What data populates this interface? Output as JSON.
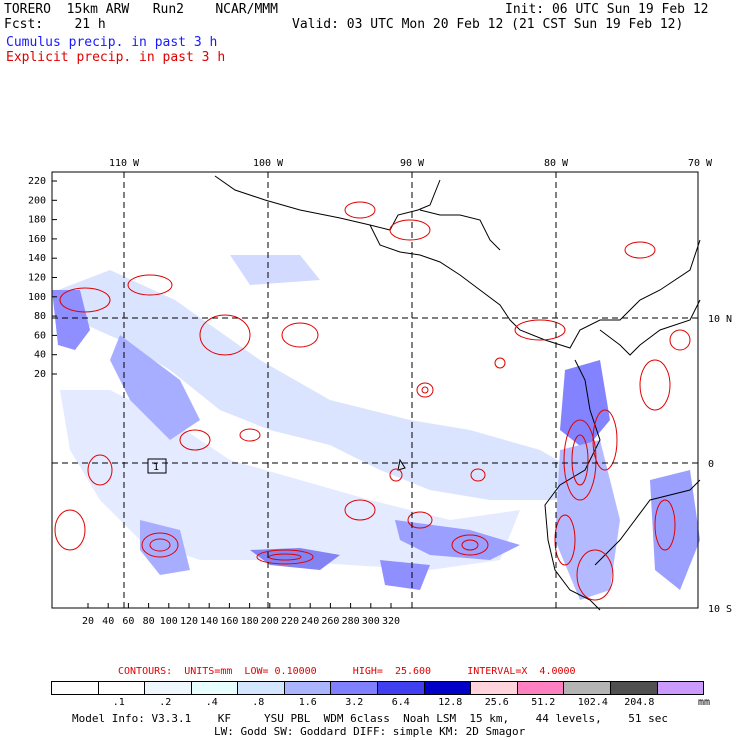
{
  "header": {
    "model": "TORERO  15km ARW   Run2    NCAR/MMM",
    "init": "Init: 06 UTC Sun 19 Feb 12",
    "fcst_label": "Fcst:    21 h",
    "valid": "Valid: 03 UTC Mon 20 Feb 12 (21 CST Sun 19 Feb 12)",
    "line_cumulus": "Cumulus precip. in past 3 h",
    "line_explicit": "Explicit precip. in past 3 h"
  },
  "map": {
    "top_lon_labels": [
      "110 W",
      "100 W",
      "90 W",
      "80 W",
      "70 W"
    ],
    "right_lat_labels": [
      "10 N",
      "0",
      "10 S"
    ],
    "y_ticks": [
      "220",
      "200",
      "180",
      "160",
      "140",
      "120",
      "100",
      "80",
      "60",
      "40",
      "20"
    ],
    "x_ticks": [
      "20",
      "40",
      "60",
      "80",
      "100",
      "120",
      "140",
      "160",
      "180",
      "200",
      "220",
      "240",
      "260",
      "280",
      "300",
      "320"
    ],
    "box_label": "1"
  },
  "contours_text": "CONTOURS:  UNITS=mm  LOW= 0.10000      HIGH=  25.600      INTERVAL=X  4.0000",
  "colorbar": {
    "labels": [
      ".1",
      ".2",
      ".4",
      ".8",
      "1.6",
      "3.2",
      "6.4",
      "12.8",
      "25.6",
      "51.2",
      "102.4",
      "204.8"
    ],
    "unit": "mm",
    "colors": [
      "#ffffff",
      "#ffffff",
      "#f0f8ff",
      "#e8ffff",
      "#d4e6ff",
      "#aab4ff",
      "#8080ff",
      "#4040f0",
      "#0000c8",
      "#ffd4dc",
      "#ff80c0",
      "#b4b4b4",
      "#505050",
      "#cc99ff"
    ]
  },
  "footer": {
    "line1": "Model Info: V3.3.1    KF     YSU PBL  WDM 6class  Noah LSM  15 km,    44 levels,    51 sec",
    "line2": "LW: Godd SW: Goddard DIFF: simple KM: 2D Smagor"
  }
}
